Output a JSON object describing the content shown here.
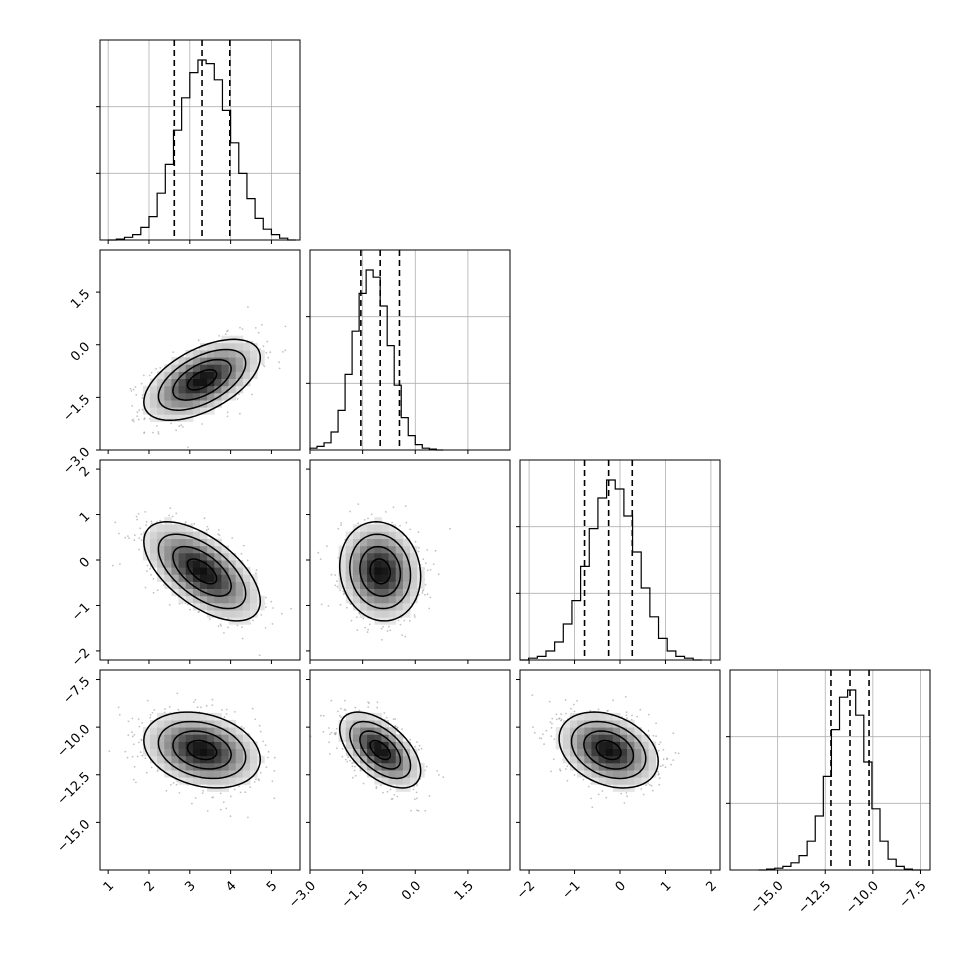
{
  "chart_data": {
    "type": "corner",
    "grid": true,
    "quantile_lines": "dashed",
    "parameters": [
      {
        "mean": 3.3,
        "sd": 0.68,
        "quantiles": [
          2.62,
          3.3,
          3.98
        ],
        "range": [
          0.8,
          5.7
        ],
        "ticks": [
          1,
          2,
          3,
          4,
          5
        ],
        "hist": [
          0.0,
          0.005,
          0.015,
          0.03,
          0.07,
          0.13,
          0.26,
          0.42,
          0.61,
          0.79,
          0.93,
          1.0,
          0.98,
          0.89,
          0.72,
          0.54,
          0.37,
          0.23,
          0.12,
          0.06,
          0.03,
          0.01,
          0.0
        ],
        "hist_range": [
          1.0,
          5.6
        ]
      },
      {
        "mean": -1.0,
        "sd": 0.55,
        "quantiles": [
          -1.55,
          -1.0,
          -0.45
        ],
        "range": [
          -3.0,
          2.7
        ],
        "ticks": [
          -3.0,
          -1.5,
          0.0,
          1.5
        ],
        "hist": [
          0.01,
          0.02,
          0.04,
          0.1,
          0.22,
          0.42,
          0.66,
          0.87,
          1.0,
          0.96,
          0.8,
          0.58,
          0.36,
          0.18,
          0.08,
          0.03,
          0.01,
          0.005,
          0.0
        ],
        "hist_range": [
          -3.0,
          0.8
        ]
      },
      {
        "mean": -0.25,
        "sd": 0.52,
        "quantiles": [
          -0.78,
          -0.25,
          0.27
        ],
        "range": [
          -2.2,
          2.2
        ],
        "ticks": [
          -2,
          -1,
          0,
          1,
          2
        ],
        "hist": [
          0.0,
          0.01,
          0.02,
          0.05,
          0.1,
          0.2,
          0.33,
          0.52,
          0.73,
          0.9,
          1.0,
          0.95,
          0.8,
          0.6,
          0.4,
          0.24,
          0.12,
          0.05,
          0.02,
          0.01,
          0.0
        ],
        "hist_range": [
          -2.2,
          1.8
        ]
      },
      {
        "mean": -11.2,
        "sd": 0.95,
        "quantiles": [
          -12.2,
          -11.2,
          -10.2
        ],
        "range": [
          -17.5,
          -7.0
        ],
        "ticks": [
          -15.0,
          -12.5,
          -10.0,
          -7.5
        ],
        "hist": [
          0.0,
          0.005,
          0.01,
          0.02,
          0.04,
          0.08,
          0.16,
          0.3,
          0.52,
          0.78,
          0.96,
          1.0,
          0.86,
          0.6,
          0.34,
          0.16,
          0.06,
          0.02,
          0.005,
          0.0
        ],
        "hist_range": [
          -16.0,
          -7.5
        ]
      }
    ],
    "correlations": {
      "1-0": 0.55,
      "2-0": -0.6,
      "2-1": -0.1,
      "3-0": -0.25,
      "3-1": -0.55,
      "3-2": -0.3
    },
    "contour_levels_sigma": [
      0.5,
      1.0,
      1.5,
      2.0
    ]
  }
}
